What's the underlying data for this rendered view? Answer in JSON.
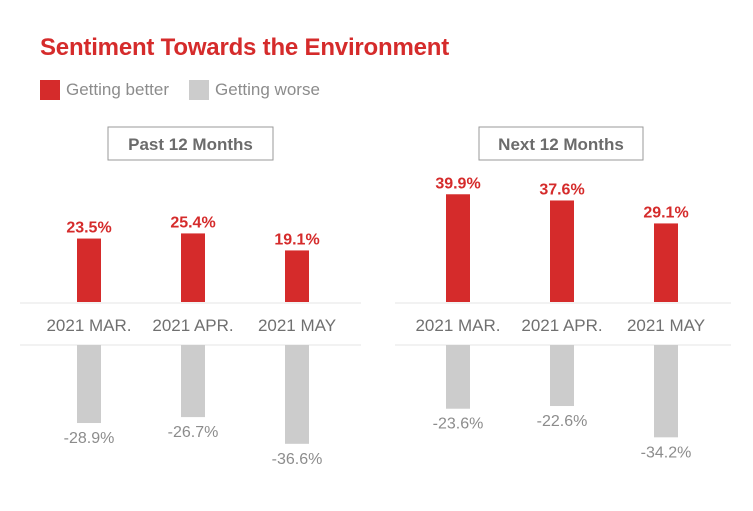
{
  "title": "Sentiment Towards the Environment",
  "colors": {
    "positive": "#d52b2b",
    "negative": "#cccccc",
    "title": "#d52b2b",
    "label": "#8c8c8c"
  },
  "chart_data": {
    "type": "bar",
    "title": "Sentiment Towards the Environment",
    "legend": [
      {
        "name": "Getting better",
        "color": "#d52b2b"
      },
      {
        "name": "Getting worse",
        "color": "#cccccc"
      }
    ],
    "legend_position": "top-left",
    "categories": [
      "2021 MAR.",
      "2021 APR.",
      "2021 MAY"
    ],
    "panels": [
      {
        "label": "Past 12 Months",
        "series": [
          {
            "name": "Getting better",
            "values": [
              23.5,
              25.4,
              19.1
            ],
            "labels": [
              "23.5%",
              "25.4%",
              "19.1%"
            ]
          },
          {
            "name": "Getting worse",
            "values": [
              -28.9,
              -26.7,
              -36.6
            ],
            "labels": [
              "-28.9%",
              "-26.7%",
              "-36.6%"
            ]
          }
        ]
      },
      {
        "label": "Next 12 Months",
        "series": [
          {
            "name": "Getting better",
            "values": [
              39.9,
              37.6,
              29.1
            ],
            "labels": [
              "39.9%",
              "37.6%",
              "29.1%"
            ]
          },
          {
            "name": "Getting worse",
            "values": [
              -23.6,
              -22.6,
              -34.2
            ],
            "labels": [
              "-23.6%",
              "-22.6%",
              "-34.2%"
            ]
          }
        ]
      }
    ]
  }
}
